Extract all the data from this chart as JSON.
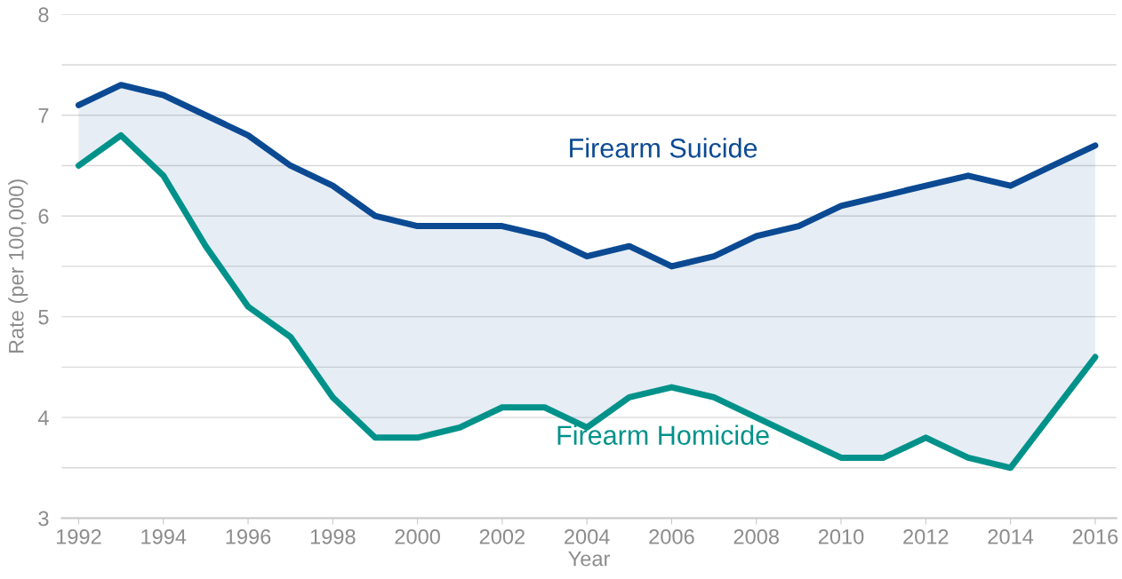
{
  "chart_data": {
    "type": "line",
    "xlabel": "Year",
    "ylabel": "Rate (per 100,000)",
    "x": [
      1992,
      1993,
      1994,
      1995,
      1996,
      1997,
      1998,
      1999,
      2000,
      2001,
      2002,
      2003,
      2004,
      2005,
      2006,
      2007,
      2008,
      2009,
      2010,
      2011,
      2012,
      2013,
      2014,
      2015,
      2016
    ],
    "series": [
      {
        "name": "Firearm Suicide",
        "color": "#0b4a93",
        "values": [
          7.1,
          7.3,
          7.2,
          7.0,
          6.8,
          6.5,
          6.3,
          6.0,
          5.9,
          5.9,
          5.9,
          5.8,
          5.6,
          5.7,
          5.5,
          5.6,
          5.8,
          5.9,
          6.1,
          6.2,
          6.3,
          6.4,
          6.3,
          6.5,
          6.7
        ],
        "lower": [
          6.5,
          6.8,
          6.4,
          5.7,
          5.1,
          4.8,
          4.2,
          3.8,
          3.8,
          3.9,
          4.1,
          4.1,
          3.9,
          4.2,
          4.3,
          4.2,
          4.0,
          3.8,
          3.6,
          3.6,
          3.8,
          3.6,
          3.5,
          4.05,
          4.6
        ],
        "upper": [
          7.1,
          7.3,
          7.2,
          7.0,
          6.8,
          6.5,
          6.3,
          6.0,
          5.9,
          5.9,
          5.9,
          5.8,
          5.6,
          5.7,
          5.5,
          5.6,
          5.8,
          5.9,
          6.1,
          6.2,
          6.3,
          6.4,
          6.3,
          6.5,
          6.7
        ]
      },
      {
        "name": "Firearm Homicide",
        "color": "#00928a",
        "values": [
          6.5,
          6.8,
          6.4,
          5.7,
          5.1,
          4.8,
          4.2,
          3.8,
          3.8,
          3.9,
          4.1,
          4.1,
          3.9,
          4.2,
          4.3,
          4.2,
          4.0,
          3.8,
          3.6,
          3.6,
          3.8,
          3.6,
          3.5,
          4.05,
          4.6
        ]
      }
    ],
    "xlim": [
      1991.6,
      2016.5
    ],
    "xticks": [
      1992,
      1994,
      1996,
      1998,
      2000,
      2002,
      2004,
      2006,
      2008,
      2010,
      2012,
      2014,
      2016
    ],
    "ylim": [
      3,
      8
    ],
    "yticks": [
      3,
      {
        "value": 3.5,
        "label": null
      },
      4,
      {
        "value": 4.5,
        "label": null
      },
      5,
      {
        "value": 5.5,
        "label": null
      },
      6,
      {
        "value": 6.5,
        "label": null
      },
      7,
      {
        "value": 7.5,
        "label": null
      },
      8
    ],
    "grid": "y",
    "legend": false,
    "marker": "none",
    "line_style": "solid"
  }
}
